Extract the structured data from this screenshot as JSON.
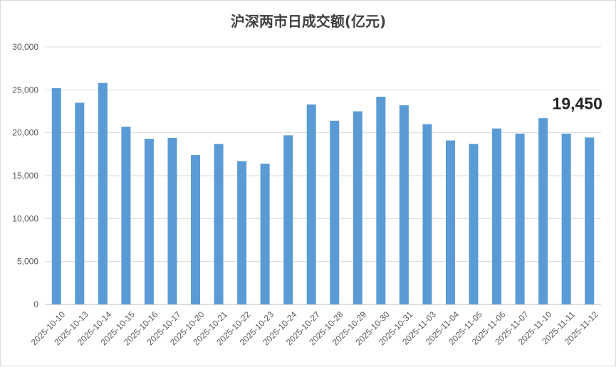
{
  "chart_data": {
    "type": "bar",
    "title": "沪深两市日成交额(亿元)",
    "xlabel": "",
    "ylabel": "",
    "ylim": [
      0,
      30000
    ],
    "yticks": [
      "0",
      "5,000",
      "10,000",
      "15,000",
      "20,000",
      "25,000",
      "30,000"
    ],
    "ytick_values": [
      0,
      5000,
      10000,
      15000,
      20000,
      25000,
      30000
    ],
    "grid": true,
    "legend": "none",
    "bar_color": "#5b9bd5",
    "categories": [
      "2025-10-10",
      "2025-10-13",
      "2025-10-14",
      "2025-10-15",
      "2025-10-16",
      "2025-10-17",
      "2025-10-20",
      "2025-10-21",
      "2025-10-22",
      "2025-10-23",
      "2025-10-24",
      "2025-10-27",
      "2025-10-28",
      "2025-10-29",
      "2025-10-30",
      "2025-10-31",
      "2025-11-03",
      "2025-11-04",
      "2025-11-05",
      "2025-11-06",
      "2025-11-07",
      "2025-11-10",
      "2025-11-11",
      "2025-11-12"
    ],
    "values": [
      25200,
      23500,
      25800,
      20700,
      19300,
      19400,
      17400,
      18700,
      16700,
      16400,
      19700,
      23300,
      21400,
      22500,
      24200,
      23200,
      21000,
      19100,
      18700,
      20500,
      19900,
      21700,
      19900,
      19450
    ],
    "callout": {
      "text": "19,450",
      "category": "2025-11-12"
    }
  }
}
